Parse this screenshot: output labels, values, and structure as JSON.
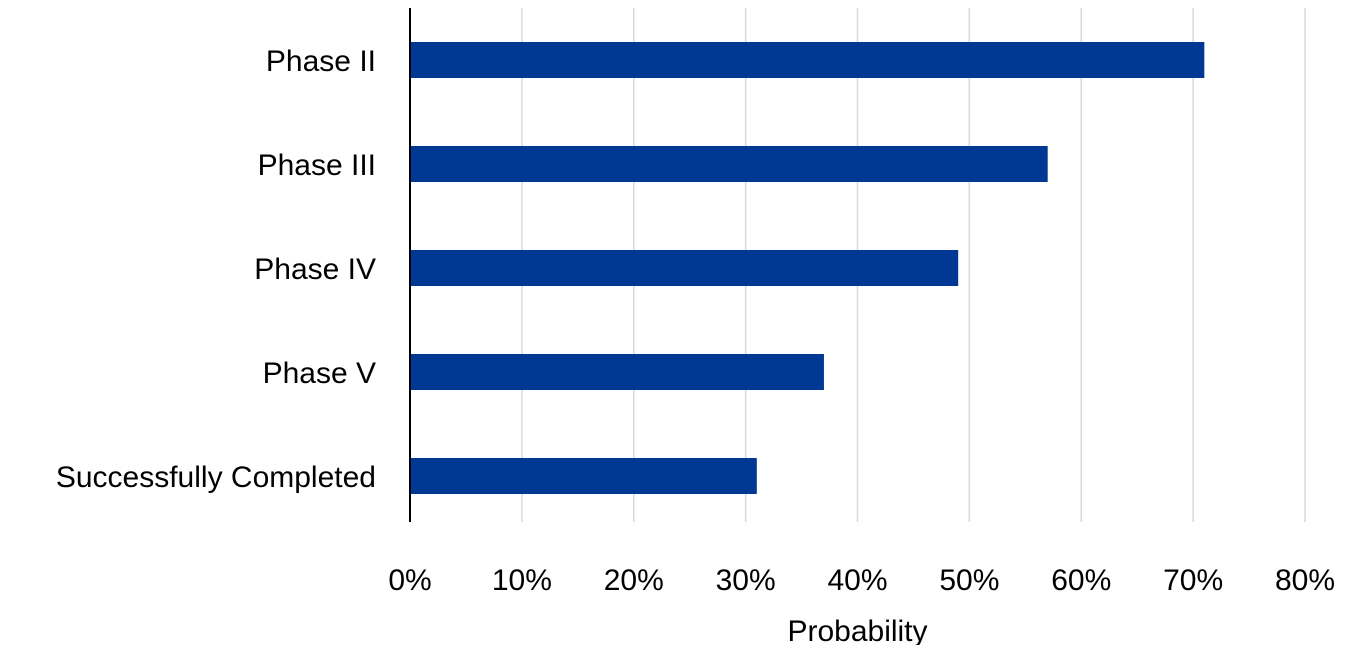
{
  "chart_data": {
    "type": "bar",
    "orientation": "horizontal",
    "categories": [
      "Phase II",
      "Phase III",
      "Phase IV",
      "Phase V",
      "Successfully Completed"
    ],
    "values": [
      0.71,
      0.57,
      0.49,
      0.37,
      0.31
    ],
    "xlabel": "Probability",
    "ylabel": "",
    "xlim": [
      0,
      0.8
    ],
    "x_ticks": [
      0,
      0.1,
      0.2,
      0.3,
      0.4,
      0.5,
      0.6,
      0.7,
      0.8
    ],
    "x_tick_labels": [
      "0%",
      "10%",
      "20%",
      "30%",
      "40%",
      "50%",
      "60%",
      "70%",
      "80%"
    ],
    "grid": "vertical",
    "legend": "none",
    "colors": {
      "bar": "#003893",
      "grid": "#d9d9d9",
      "axis": "#000000",
      "text": "#000000"
    }
  }
}
